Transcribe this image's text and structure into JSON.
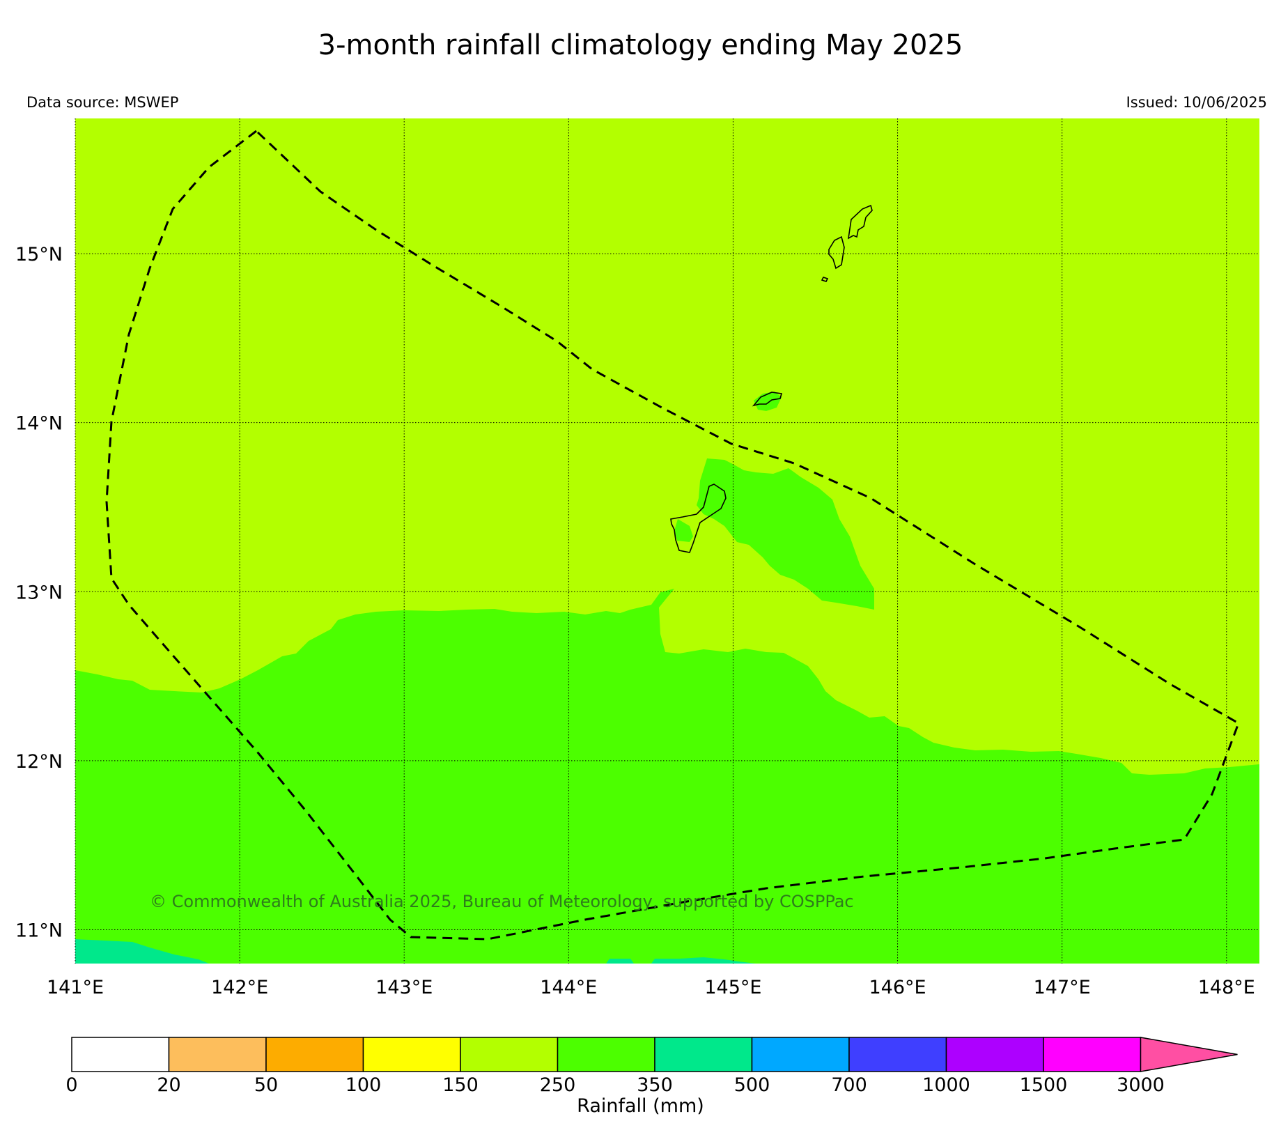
{
  "title": "3-month rainfall climatology ending May 2025",
  "data_source": "Data source: MSWEP",
  "issued": "Issued: 10/06/2025",
  "copyright": "© Commonwealth of Australia 2025, Bureau of Meteorology, supported by COSPPac",
  "map": {
    "lon_range": [
      141.0,
      148.2
    ],
    "lat_range": [
      10.8,
      15.8
    ],
    "lon_ticks": [
      "141°E",
      "142°E",
      "143°E",
      "144°E",
      "145°E",
      "146°E",
      "147°E",
      "148°E"
    ],
    "lat_ticks": [
      "11°N",
      "12°N",
      "13°N",
      "14°N",
      "15°N"
    ],
    "background_class": "150-250",
    "colors": {
      "class_150_250": "#b3ff00",
      "class_250_350": "#4cff00",
      "class_350_500": "#00e88b",
      "boundary": "#000000",
      "copyright_text": "#2e7d1b"
    }
  },
  "colorbar": {
    "label": "Rainfall (mm)",
    "ticks": [
      "0",
      "20",
      "50",
      "100",
      "150",
      "250",
      "350",
      "500",
      "700",
      "1000",
      "1500",
      "3000"
    ],
    "colors": [
      "#ffffff",
      "#fdbe5c",
      "#fdac00",
      "#ffff00",
      "#b3ff00",
      "#4cff00",
      "#00e88b",
      "#00a8ff",
      "#3f3fff",
      "#ad00ff",
      "#ff00ff",
      "#ff4fa3"
    ]
  }
}
